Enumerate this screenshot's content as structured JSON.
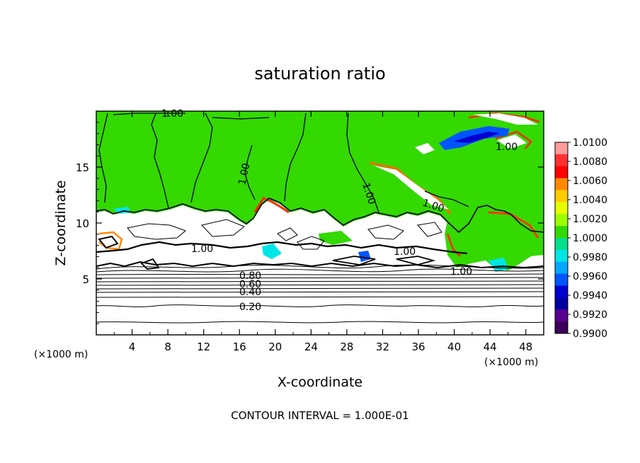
{
  "chart_data": {
    "type": "heatmap",
    "title": "saturation ratio",
    "xlabel": "X-coordinate",
    "ylabel": "Z-coordinate",
    "x_unit": "(×1000 m)",
    "x_unit_right": "(×1000 m)",
    "xlim": [
      0,
      50
    ],
    "ylim": [
      0,
      20
    ],
    "x_ticks": [
      "4",
      "8",
      "12",
      "16",
      "20",
      "24",
      "28",
      "32",
      "36",
      "40",
      "44",
      "48"
    ],
    "y_ticks": [
      "5",
      "10",
      "15"
    ],
    "footer": "CONTOUR INTERVAL = 1.000E-01",
    "contour_labels": [
      "1.00",
      "1.00",
      "1.00",
      "1.00",
      "1.00",
      "1.00",
      "1.00",
      "1.00",
      "0.80",
      "0.60",
      "0.40",
      "0.20"
    ],
    "colorbar": {
      "min": 0.99,
      "max": 1.01,
      "labels": [
        "1.0100",
        "1.0080",
        "1.0060",
        "1.0040",
        "1.0020",
        "1.0000",
        "0.9980",
        "0.9960",
        "0.9940",
        "0.9920",
        "0.9900"
      ],
      "colors": [
        "#ff9c9c",
        "#ff3030",
        "#ff0000",
        "#ff8a00",
        "#ffcc00",
        "#e6ff00",
        "#9cff00",
        "#33d900",
        "#00e08a",
        "#00e6e6",
        "#00a8ff",
        "#0055ff",
        "#0000d0",
        "#0000a0",
        "#5a0090",
        "#3a005a"
      ]
    }
  }
}
